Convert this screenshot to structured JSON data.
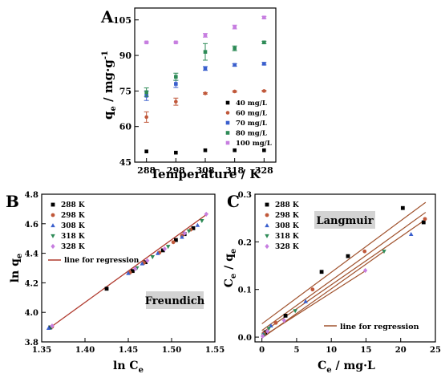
{
  "chart_data": [
    {
      "panel": "A",
      "type": "scatter",
      "xlabel": "Temperature / K",
      "ylabel": "q",
      "ylabel_sub": "e",
      "ylabel_unit": " / mg·g",
      "ylabel_sup": "-1",
      "x": [
        288,
        298,
        308,
        318,
        328
      ],
      "xticks": [
        "288",
        "298",
        "308",
        "318",
        "328"
      ],
      "xlim": [
        284,
        332
      ],
      "yticks": [
        45,
        60,
        75,
        90,
        105
      ],
      "ylim": [
        45,
        110
      ],
      "grid": false,
      "legend_position": "bottom-right",
      "series": [
        {
          "name": "40  mg/L",
          "color": "#000000",
          "marker": "square",
          "values": [
            49.5,
            49.0,
            50.0,
            50.0,
            50.0
          ],
          "errors": [
            0,
            0,
            0,
            0,
            0
          ]
        },
        {
          "name": "60  mg/L",
          "color": "#c0583a",
          "marker": "circle",
          "values": [
            64.0,
            70.5,
            74.0,
            74.8,
            75.0
          ],
          "errors": [
            2.2,
            1.5,
            0.3,
            0.3,
            0.3
          ]
        },
        {
          "name": "70  mg/L",
          "color": "#3a5fcd",
          "marker": "square",
          "values": [
            73.0,
            78.0,
            84.5,
            86.0,
            86.5
          ],
          "errors": [
            2.0,
            1.5,
            0.8,
            0.5,
            0.5
          ]
        },
        {
          "name": "80  mg/L",
          "color": "#2e8b57",
          "marker": "square",
          "values": [
            74.5,
            81.0,
            91.5,
            93.0,
            95.5
          ],
          "errors": [
            1.8,
            1.5,
            3.5,
            1.0,
            0.5
          ]
        },
        {
          "name": "100 mg/L",
          "color": "#c77ee0",
          "marker": "square",
          "values": [
            95.5,
            95.5,
            98.5,
            102.0,
            106.0
          ],
          "errors": [
            0.3,
            0.3,
            0.8,
            0.8,
            0.5
          ]
        }
      ]
    },
    {
      "panel": "B",
      "type": "scatter",
      "xlabel": "ln C",
      "xlabel_sub": "e",
      "ylabel": "ln q",
      "ylabel_sub": "e",
      "xlim": [
        1.35,
        1.55
      ],
      "ylim": [
        3.8,
        4.8
      ],
      "xticks": [
        "1.35",
        "1.40",
        "1.45",
        "1.50",
        "1.55"
      ],
      "yticks": [
        "3.8",
        "4.0",
        "4.2",
        "4.4",
        "4.6",
        "4.8"
      ],
      "annotation": "Freundich",
      "regression_label": "line for regression",
      "regression_color": "#b03a2e",
      "legend_position": "top-left",
      "regression": {
        "x1": 1.357,
        "y1": 3.885,
        "x2": 1.542,
        "y2": 4.67
      },
      "series": [
        {
          "name": "288 K",
          "color": "#000000",
          "marker": "square",
          "x": [
            1.36,
            1.425,
            1.455,
            1.47,
            1.49,
            1.505,
            1.515,
            1.525
          ],
          "y": [
            3.898,
            4.16,
            4.28,
            4.34,
            4.42,
            4.49,
            4.53,
            4.57
          ]
        },
        {
          "name": "298 K",
          "color": "#c0583a",
          "marker": "circle",
          "x": [
            1.362,
            1.452,
            1.468,
            1.486,
            1.502,
            1.512,
            1.522
          ],
          "y": [
            3.903,
            4.27,
            4.335,
            4.405,
            4.475,
            4.52,
            4.56
          ]
        },
        {
          "name": "308 K",
          "color": "#3a5fcd",
          "marker": "triangle-up",
          "x": [
            1.358,
            1.45,
            1.466,
            1.484,
            1.512,
            1.53
          ],
          "y": [
            3.893,
            4.265,
            4.33,
            4.4,
            4.51,
            4.59
          ]
        },
        {
          "name": "318 K",
          "color": "#2e8b57",
          "marker": "triangle-down",
          "x": [
            1.361,
            1.46,
            1.478,
            1.496,
            1.52,
            1.535
          ],
          "y": [
            3.898,
            4.3,
            4.375,
            4.445,
            4.55,
            4.62
          ]
        },
        {
          "name": "328 K",
          "color": "#c77ee0",
          "marker": "diamond",
          "x": [
            1.362,
            1.458,
            1.472,
            1.492,
            1.515,
            1.54
          ],
          "y": [
            3.908,
            4.295,
            4.35,
            4.43,
            4.535,
            4.665
          ]
        }
      ]
    },
    {
      "panel": "C",
      "type": "scatter",
      "xlabel": "C",
      "xlabel_sub": "e",
      "xlabel_unit": " / mg·L",
      "ylabel": "C",
      "ylabel_sub": "e",
      "ylabel_rest": " / q",
      "ylabel_sub2": "e",
      "xlim": [
        -1,
        25
      ],
      "ylim": [
        -0.01,
        0.3
      ],
      "xticks": [
        "0",
        "5",
        "10",
        "15",
        "20",
        "25"
      ],
      "yticks": [
        "0.0",
        "0.1",
        "0.2",
        "0.3"
      ],
      "annotation": "Langmuir",
      "regression_label": "line for regression",
      "regression_color": "#a0522d",
      "legend_position": "top-left",
      "regression_lines": [
        {
          "x1": 0,
          "y1": 0.028,
          "x2": 23.6,
          "y2": 0.283
        },
        {
          "x1": 0,
          "y1": 0.014,
          "x2": 23.6,
          "y2": 0.262
        },
        {
          "x1": 0,
          "y1": 0.009,
          "x2": 23.6,
          "y2": 0.247
        },
        {
          "x1": 0,
          "y1": -0.002,
          "x2": 17.6,
          "y2": 0.18
        },
        {
          "x1": 0,
          "y1": 0.0,
          "x2": 15.0,
          "y2": 0.14
        }
      ],
      "series": [
        {
          "name": "288 K",
          "color": "#000000",
          "marker": "square",
          "x": [
            0.5,
            3.4,
            8.6,
            12.4,
            20.3,
            23.3
          ],
          "y": [
            0.01,
            0.045,
            0.137,
            0.17,
            0.271,
            0.241
          ]
        },
        {
          "name": "298 K",
          "color": "#c0583a",
          "marker": "circle",
          "x": [
            0.3,
            2.0,
            7.3,
            14.8,
            23.5
          ],
          "y": [
            0.008,
            0.03,
            0.1,
            0.18,
            0.248
          ]
        },
        {
          "name": "308 K",
          "color": "#3a5fcd",
          "marker": "triangle-up",
          "x": [
            0.2,
            1.3,
            6.3,
            21.5
          ],
          "y": [
            0.006,
            0.024,
            0.075,
            0.216
          ]
        },
        {
          "name": "318 K",
          "color": "#2e8b57",
          "marker": "triangle-down",
          "x": [
            0.2,
            1.0,
            4.8,
            17.6
          ],
          "y": [
            0.004,
            0.018,
            0.055,
            0.18
          ]
        },
        {
          "name": "328 K",
          "color": "#c77ee0",
          "marker": "diamond",
          "x": [
            0.1,
            0.8,
            3.2,
            14.9
          ],
          "y": [
            0.002,
            0.012,
            0.035,
            0.14
          ]
        }
      ]
    }
  ],
  "panel_letters": [
    "A",
    "B",
    "C"
  ]
}
